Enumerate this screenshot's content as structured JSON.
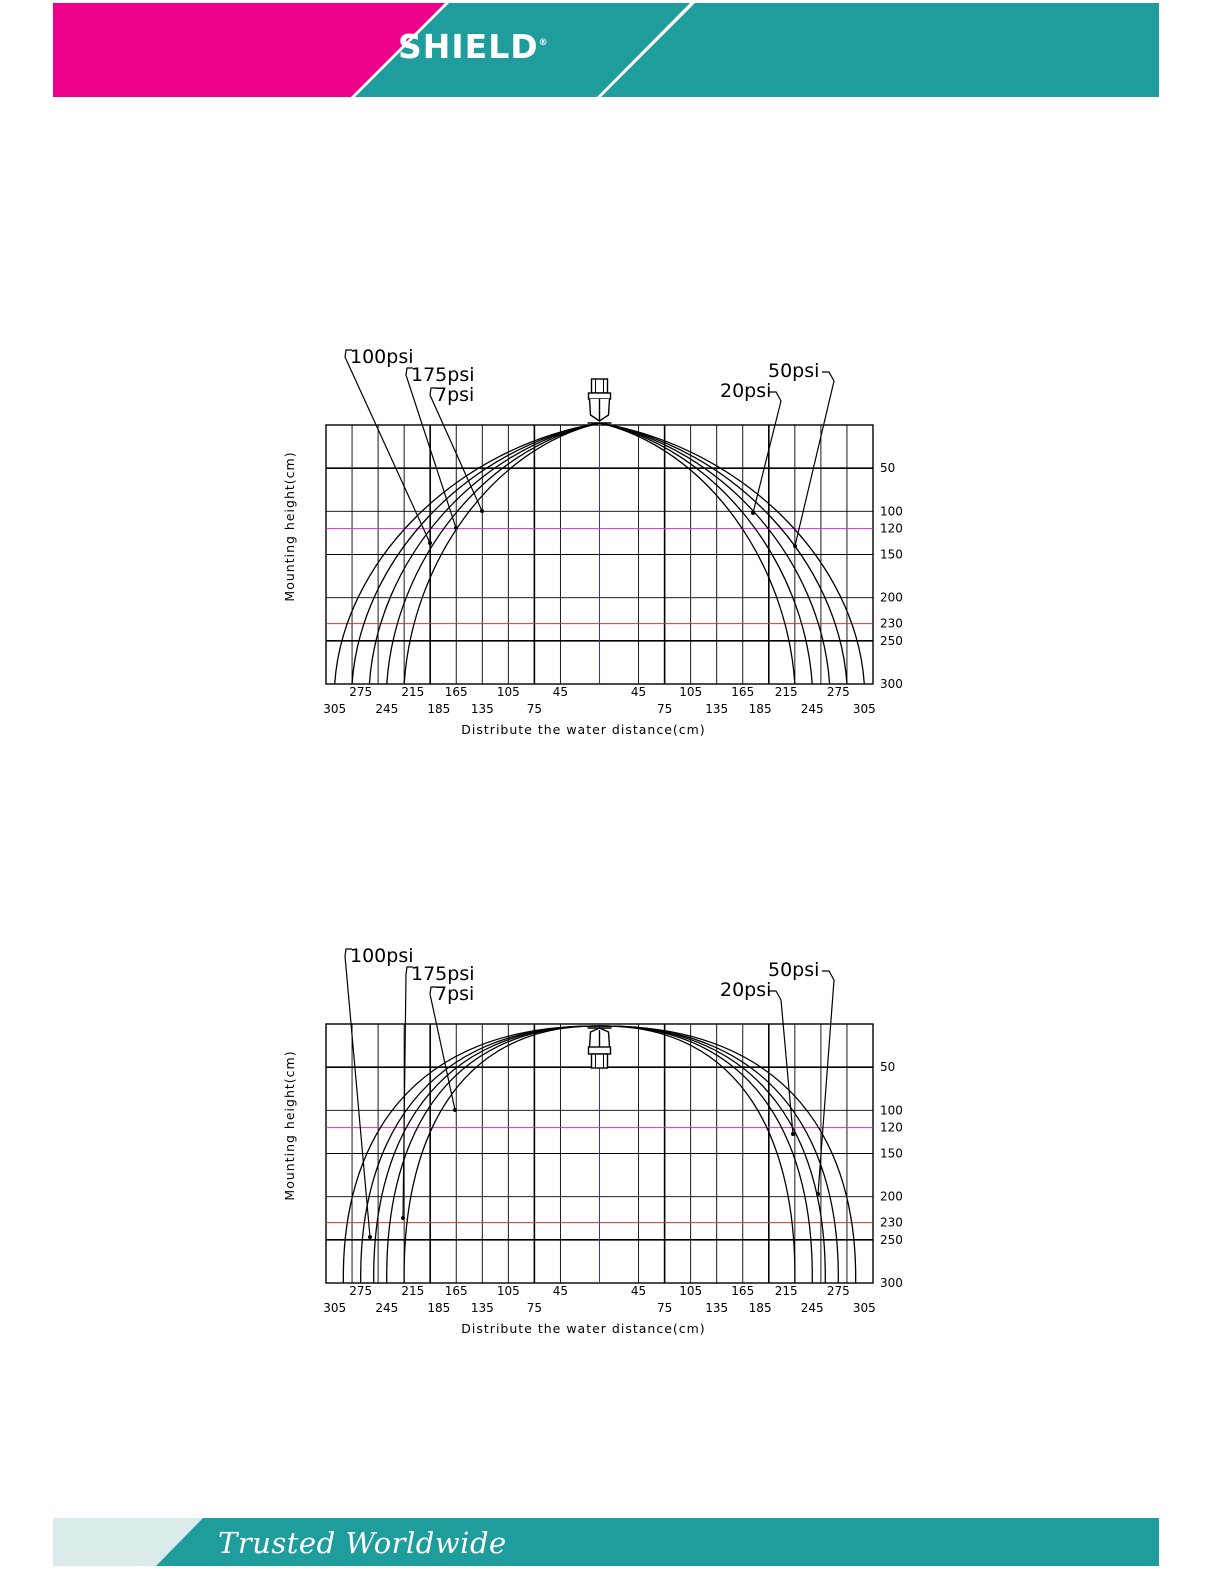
{
  "header": {
    "brand": "SHIELD",
    "registered": "®",
    "colors": {
      "magenta": "#ec008c",
      "teal": "#1f9c9c"
    }
  },
  "footer": {
    "tagline": "Trusted Worldwide",
    "colors": {
      "light": "#dbeaea",
      "teal": "#1f9c9c"
    }
  },
  "chart_data": [
    {
      "type": "line",
      "title": "",
      "xlabel": "Distribute the water distance(cm)",
      "ylabel": "Mounting height(cm)",
      "x_ticks_left_row1": [
        "275",
        "215",
        "165",
        "105",
        "45"
      ],
      "x_ticks_left_row2": [
        "305",
        "245",
        "185",
        "135",
        "75"
      ],
      "x_ticks_right_row1": [
        "45",
        "105",
        "165",
        "215",
        "275"
      ],
      "x_ticks_right_row2": [
        "75",
        "135",
        "185",
        "245",
        "305"
      ],
      "y_ticks": [
        "50",
        "100",
        "120",
        "150",
        "200",
        "230",
        "250",
        "300"
      ],
      "xlim": [
        -315,
        315
      ],
      "ylim": [
        0,
        300
      ],
      "reference_lines": [
        {
          "y": 120,
          "color": "#cc33cc"
        },
        {
          "y": 230,
          "color": "#dd3333"
        }
      ],
      "center_line_color": "#3333aa",
      "pressure_labels_left": [
        "100psi",
        "175psi",
        "7psi"
      ],
      "pressure_labels_right": [
        "50psi",
        "20psi"
      ],
      "series": [
        {
          "name": "7psi",
          "reach_at_300": 225
        },
        {
          "name": "20psi",
          "reach_at_300": 245
        },
        {
          "name": "50psi",
          "reach_at_300": 265
        },
        {
          "name": "100psi",
          "reach_at_300": 285
        },
        {
          "name": "175psi",
          "reach_at_300": 305
        }
      ]
    },
    {
      "type": "line",
      "title": "",
      "xlabel": "Distribute the water distance(cm)",
      "ylabel": "Mounting height(cm)",
      "x_ticks_left_row1": [
        "275",
        "215",
        "165",
        "105",
        "45"
      ],
      "x_ticks_left_row2": [
        "305",
        "245",
        "185",
        "135",
        "75"
      ],
      "x_ticks_right_row1": [
        "45",
        "105",
        "165",
        "215",
        "275"
      ],
      "x_ticks_right_row2": [
        "75",
        "135",
        "185",
        "245",
        "305"
      ],
      "y_ticks": [
        "50",
        "100",
        "120",
        "150",
        "200",
        "230",
        "250",
        "300"
      ],
      "xlim": [
        -315,
        315
      ],
      "ylim": [
        0,
        300
      ],
      "reference_lines": [
        {
          "y": 120,
          "color": "#cc33cc"
        },
        {
          "y": 230,
          "color": "#dd3333"
        }
      ],
      "center_line_color": "#3333aa",
      "pressure_labels_left": [
        "100psi",
        "175psi",
        "7psi"
      ],
      "pressure_labels_right": [
        "50psi",
        "20psi"
      ],
      "series": [
        {
          "name": "7psi",
          "reach_at_300": 225
        },
        {
          "name": "20psi",
          "reach_at_300": 245
        },
        {
          "name": "50psi",
          "reach_at_300": 260
        },
        {
          "name": "100psi",
          "reach_at_300": 275
        },
        {
          "name": "175psi",
          "reach_at_300": 295
        }
      ]
    }
  ]
}
